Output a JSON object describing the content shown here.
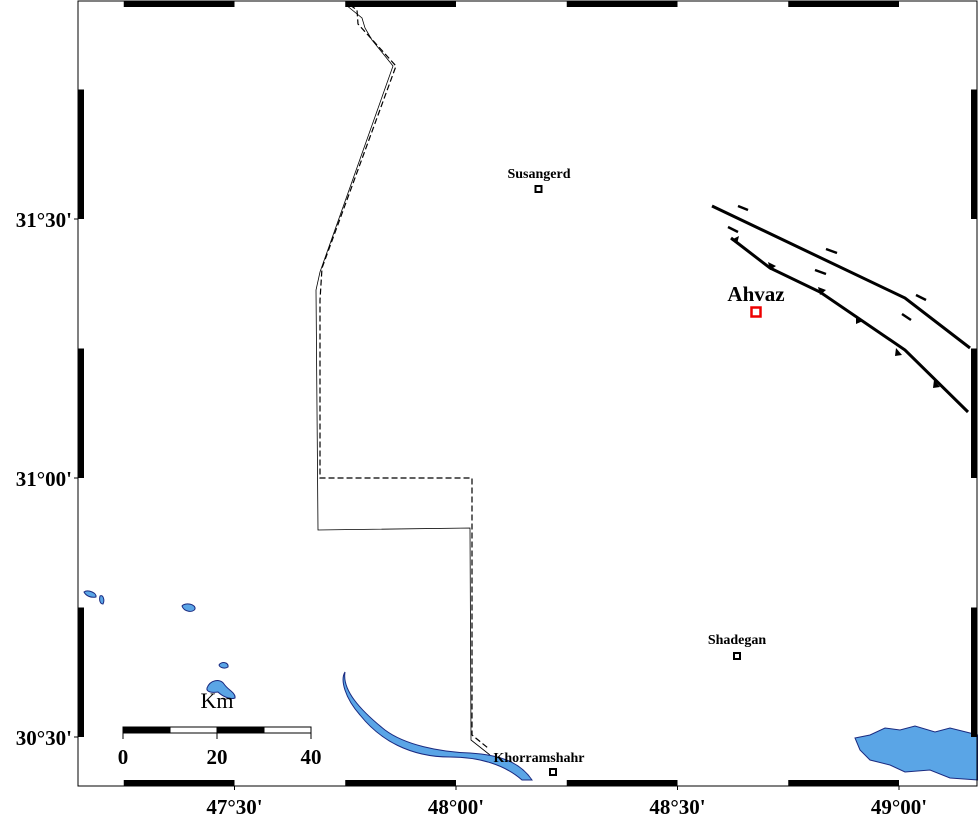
{
  "map": {
    "lon_ticks": [
      {
        "value": 47.5,
        "label": "47°30'"
      },
      {
        "value": 48,
        "label": "48°00'"
      },
      {
        "value": 48.5,
        "label": "48°30'"
      },
      {
        "value": 49,
        "label": "49°00'"
      }
    ],
    "lat_ticks": [
      {
        "value": 31.5,
        "label": "31°30'"
      },
      {
        "value": 31,
        "label": "31°00'"
      },
      {
        "value": 30.5,
        "label": "30°30'"
      }
    ],
    "cities": [
      {
        "label": "Susangerd"
      },
      {
        "label": "Ahvaz"
      },
      {
        "label": "Shadegan"
      },
      {
        "label": "Khorramshahr"
      }
    ],
    "scale": {
      "unit": "Km",
      "ticks": [
        0,
        20,
        40
      ]
    }
  }
}
